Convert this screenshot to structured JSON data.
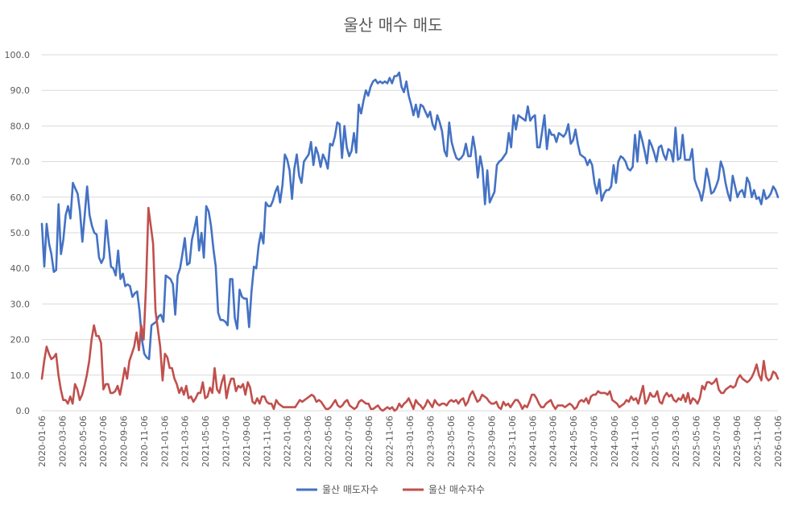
{
  "chart_data": {
    "type": "line",
    "title": "울산 매수 매도",
    "ylim": [
      0,
      100
    ],
    "yticks": [
      "0.0",
      "10.0",
      "20.0",
      "30.0",
      "40.0",
      "50.0",
      "60.0",
      "70.0",
      "80.0",
      "90.0",
      "100.0"
    ],
    "xticks": [
      "2020-01-06",
      "2020-03-06",
      "2020-05-06",
      "2020-07-06",
      "2020-09-06",
      "2020-11-06",
      "2021-01-06",
      "2021-03-06",
      "2021-05-06",
      "2021-07-06",
      "2021-09-06",
      "2021-11-06",
      "2022-01-06",
      "2022-03-06",
      "2022-05-06",
      "2022-07-06",
      "2022-09-06",
      "2022-11-06",
      "2023-01-06",
      "2023-03-06",
      "2023-05-06",
      "2023-07-06",
      "2023-09-06",
      "2023-11-06",
      "2024-01-06",
      "2024-03-06",
      "2024-05-06",
      "2024-07-06",
      "2024-09-06",
      "2024-11-06",
      "2025-01-06",
      "2025-03-06",
      "2025-05-06",
      "2025-07-06",
      "2025-09-06",
      "2025-11-06",
      "2026-01-06"
    ],
    "grid": true,
    "legend_position": "bottom",
    "series": [
      {
        "name": "울산 매도자수",
        "color": "#4472c4",
        "values": [
          52.5,
          40.5,
          52.5,
          47,
          44,
          39,
          39.5,
          58,
          44,
          48,
          55,
          57.5,
          54,
          64,
          62.5,
          61,
          56,
          47.5,
          55,
          63,
          55,
          52,
          50,
          49.5,
          43,
          41.5,
          43,
          53.5,
          47,
          40.5,
          40,
          38,
          45,
          37,
          38.5,
          35,
          35.5,
          35,
          32,
          33,
          33.5,
          28,
          20,
          16,
          15,
          14.5,
          24,
          24.5,
          25,
          26.5,
          27,
          25,
          38,
          37.5,
          37,
          35.5,
          27,
          38,
          40,
          44,
          48.5,
          41,
          41.5,
          48,
          51,
          54.5,
          45,
          50,
          43,
          57.5,
          56,
          52,
          45.5,
          40.5,
          27.5,
          25.5,
          25.5,
          25,
          24,
          37,
          37,
          26,
          23,
          34,
          32,
          31.5,
          31.5,
          23.5,
          33.5,
          40.5,
          40,
          46.5,
          50,
          47,
          58.5,
          57.5,
          57.5,
          59,
          61.5,
          63,
          58.5,
          63.5,
          72,
          70.5,
          67.5,
          59.5,
          68,
          72,
          66,
          64,
          70,
          71,
          72,
          75.5,
          69,
          74,
          72,
          68.5,
          72,
          70.5,
          68,
          75,
          74.5,
          77,
          81,
          80.5,
          71,
          80,
          74,
          71.5,
          73,
          78,
          72.5,
          86,
          83.5,
          87,
          90,
          88.5,
          91,
          92.5,
          93,
          92,
          92.5,
          92,
          92.5,
          92,
          93.5,
          92,
          94,
          94,
          95,
          91,
          89.5,
          92.5,
          88.5,
          86,
          83,
          86,
          82.5,
          86,
          85.5,
          84,
          82.5,
          84,
          80.5,
          79,
          83,
          81,
          78.5,
          73,
          71.5,
          81,
          75.5,
          73,
          71,
          70.5,
          71,
          72,
          75,
          71.5,
          71.5,
          77,
          73,
          65.5,
          71.5,
          68,
          58,
          67.5,
          58.5,
          60,
          61.5,
          69,
          70,
          70.5,
          71.5,
          72.5,
          78,
          74,
          83,
          79,
          83,
          82.5,
          82,
          81.5,
          85.5,
          81.5,
          82.5,
          83,
          74,
          74,
          78.5,
          83,
          73.5,
          79,
          77.5,
          77.5,
          75.5,
          78,
          77.5,
          77,
          78,
          80.5,
          75,
          76,
          79,
          75,
          72,
          71.5,
          71,
          69,
          70.5,
          69,
          64,
          61,
          65,
          59,
          61,
          62,
          62,
          63,
          69,
          64,
          70,
          71.5,
          71,
          70,
          68,
          67.5,
          68.5,
          77.5,
          70,
          78.5,
          76,
          73,
          69.5,
          76,
          74.5,
          72.5,
          70,
          74,
          74.5,
          72,
          70.5,
          73.5,
          73,
          70,
          79.5,
          70.5,
          71,
          77.5,
          70.5,
          70.5,
          70.5,
          73.5,
          65,
          63,
          61.5,
          59,
          62.5,
          68,
          65,
          61,
          61.5,
          63,
          65,
          70,
          68,
          64,
          61,
          59,
          66,
          63,
          60,
          61.5,
          62,
          60,
          65.5,
          64,
          60,
          62,
          59.5,
          60,
          58,
          62,
          59.5,
          60,
          61,
          63,
          62,
          60
        ]
      },
      {
        "name": "울산 매수자수",
        "color": "#c0504d",
        "values": [
          9,
          14,
          18,
          16,
          14.5,
          15,
          16,
          10,
          6,
          3,
          3,
          2,
          4,
          2,
          7.5,
          6,
          3,
          4.5,
          7,
          10,
          14,
          20,
          24,
          21,
          21,
          19,
          6,
          7.5,
          7.5,
          5,
          5,
          5.5,
          7,
          4.5,
          8,
          12,
          9,
          14,
          16,
          18,
          22,
          17,
          24,
          20,
          35,
          57,
          52,
          47,
          28,
          23,
          18,
          8.5,
          16,
          15,
          12,
          12,
          9,
          7.5,
          5,
          6.5,
          4.5,
          7,
          3.5,
          4,
          2.5,
          3.5,
          5,
          5,
          8,
          3.5,
          4,
          6.5,
          5,
          12,
          6,
          5,
          8,
          10,
          3.5,
          7,
          9,
          9,
          5.5,
          7,
          6.5,
          7.5,
          4.5,
          8,
          6.5,
          2.5,
          2,
          3.5,
          2,
          4,
          4,
          2.5,
          2,
          2,
          0.5,
          3,
          2,
          1.5,
          1,
          1,
          1,
          1,
          1,
          1,
          2,
          3,
          2.5,
          3,
          3.5,
          4,
          4.5,
          4,
          2.5,
          3,
          2.5,
          1.5,
          0.5,
          0.5,
          1,
          2,
          3,
          1.5,
          1,
          1.5,
          2.5,
          3,
          1.5,
          1,
          0.5,
          1,
          2.5,
          3,
          2.5,
          2,
          2,
          0.5,
          0.5,
          1,
          1.5,
          0.5,
          0,
          0.5,
          1,
          0.5,
          1,
          0,
          0.5,
          2,
          1,
          2,
          2.5,
          3.5,
          2,
          0.5,
          3,
          2,
          1.5,
          0.5,
          1.5,
          3,
          2,
          1,
          3,
          2,
          1.5,
          2,
          2,
          1.5,
          2.5,
          3,
          2.5,
          3,
          2,
          3,
          3.5,
          1.5,
          2.5,
          4.5,
          5.5,
          4,
          2.5,
          3,
          4.5,
          4,
          3.5,
          2.5,
          2,
          2,
          2.5,
          1,
          0.5,
          2.5,
          1.5,
          2,
          1,
          2,
          3,
          3,
          2,
          0.5,
          1.5,
          1,
          2.5,
          4.5,
          4.5,
          3.5,
          2,
          1,
          1,
          2,
          2.5,
          3,
          1.5,
          0.5,
          1.5,
          1.5,
          1.5,
          1,
          1.5,
          2,
          1.5,
          0.5,
          1,
          2.5,
          3,
          2.5,
          3.5,
          2,
          4,
          4.5,
          4.5,
          5.5,
          5,
          5,
          5,
          4.5,
          5.5,
          3,
          2.5,
          2,
          1,
          1.5,
          2,
          3,
          2.5,
          4,
          3,
          3.5,
          2,
          4.5,
          7,
          2,
          3,
          5,
          4,
          4,
          5.5,
          2.5,
          2,
          4,
          5,
          4,
          4.5,
          3,
          2.5,
          3.5,
          3,
          4.5,
          2.5,
          5,
          2,
          3.5,
          3,
          2,
          3.5,
          7,
          6,
          8,
          8,
          7.5,
          8,
          9,
          6,
          5,
          5,
          6,
          6.5,
          7,
          6.5,
          7,
          9,
          10,
          9,
          8.5,
          8,
          8.5,
          9.5,
          11,
          13,
          10,
          8.5,
          14,
          9.5,
          8.5,
          9,
          11,
          10.5,
          9
        ]
      }
    ]
  }
}
